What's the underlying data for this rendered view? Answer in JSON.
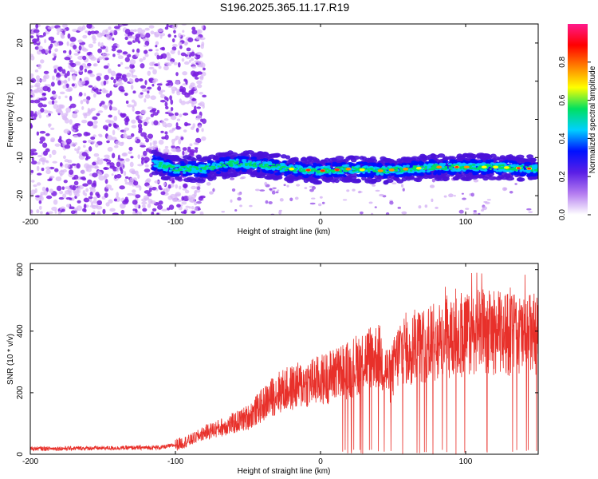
{
  "title": "S196.2025.365.11.17.R19",
  "colors": {
    "frame": "#000000",
    "snr_line": "#e8302a",
    "speckle_dark": "#7a1fe0",
    "speckle_light": "#d9b8f6"
  },
  "chart_data": [
    {
      "id": "spectrogram",
      "type": "heatmap",
      "title": "S196.2025.365.11.17.R19",
      "xlabel": "Height of straight line (km)",
      "ylabel": "Frequency (Hz)",
      "xlim": [
        -200,
        150
      ],
      "ylim": [
        -25,
        25
      ],
      "xticks": [
        -200,
        -100,
        0,
        100
      ],
      "yticks": [
        -20,
        -10,
        0,
        10,
        20
      ],
      "colorbar": {
        "label": "Normalized spectral amplitude",
        "range": [
          0,
          1
        ],
        "ticks": [
          0.0,
          0.2,
          0.4,
          0.6,
          0.8
        ],
        "tick_labels": [
          "0.0",
          "0.2",
          "0.4",
          "0.6",
          "0.8"
        ],
        "colormap": [
          "#ffffff",
          "#b47cf0",
          "#5a1fe6",
          "#0010ff",
          "#00d0ff",
          "#00e060",
          "#ffff00",
          "#ff8000",
          "#ff0000",
          "#ff1a8c"
        ]
      },
      "noise_region_x": [
        -200,
        -90
      ],
      "ridge": {
        "x": [
          -115,
          -100,
          -80,
          -60,
          -40,
          -20,
          0,
          20,
          40,
          60,
          80,
          100,
          120,
          150
        ],
        "freq": [
          -11.5,
          -13,
          -13,
          -11.5,
          -12,
          -13,
          -13.5,
          -13,
          -13.5,
          -13,
          -12.5,
          -12.5,
          -12.5,
          -13
        ]
      }
    },
    {
      "id": "snr",
      "type": "line",
      "xlabel": "Height of straight line (km)",
      "ylabel": "SNR (10 * v/v)",
      "xlim": [
        -200,
        150
      ],
      "ylim": [
        0,
        620
      ],
      "xticks": [
        -200,
        -100,
        0,
        100
      ],
      "yticks": [
        0,
        200,
        400,
        600
      ],
      "series": [
        {
          "name": "SNR",
          "x": [
            -200,
            -150,
            -110,
            -100,
            -90,
            -80,
            -70,
            -60,
            -50,
            -40,
            -30,
            -20,
            -10,
            0,
            10,
            20,
            30,
            40,
            48,
            55,
            60,
            70,
            80,
            90,
            100,
            110,
            120,
            130,
            140,
            150
          ],
          "y": [
            18,
            20,
            22,
            30,
            45,
            70,
            85,
            100,
            120,
            160,
            200,
            215,
            230,
            240,
            260,
            275,
            310,
            320,
            250,
            340,
            345,
            355,
            365,
            370,
            390,
            400,
            395,
            390,
            385,
            390
          ]
        }
      ]
    }
  ]
}
